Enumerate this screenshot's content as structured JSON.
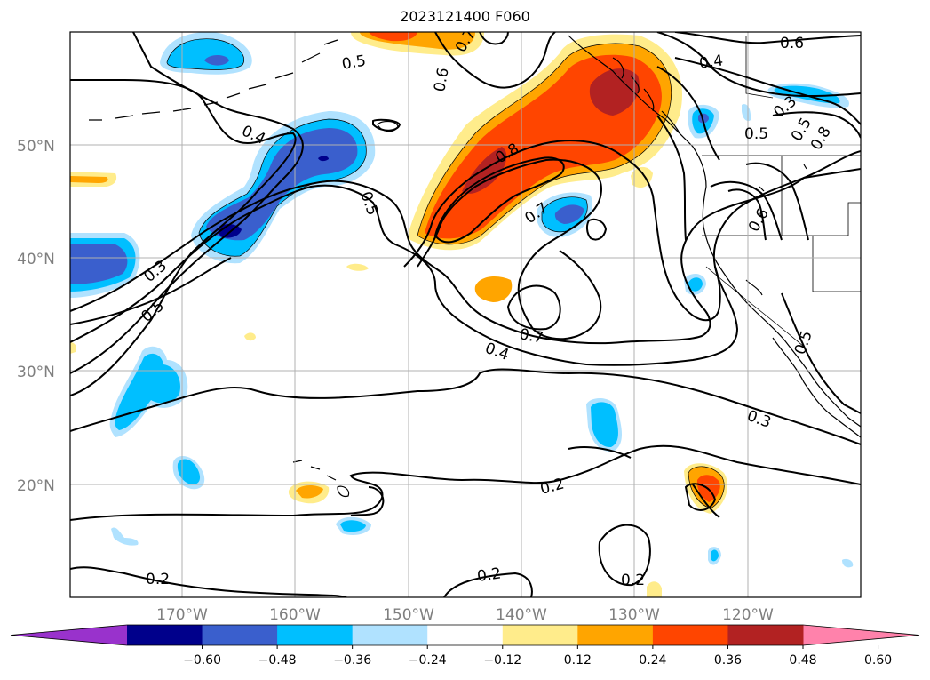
{
  "title": "2023121400 F060",
  "lat_labels": [
    "50°N",
    "40°N",
    "30°N",
    "20°N"
  ],
  "lon_labels": [
    "170°W",
    "160°W",
    "150°W",
    "140°W",
    "130°W",
    "120°W"
  ],
  "colorbar": {
    "colors": [
      "#9932CC",
      "#00008B",
      "#3A5FCD",
      "#00BFFF",
      "#B0E2FF",
      "#FFFFFF",
      "#FFEC8B",
      "#FFA500",
      "#FF4500",
      "#B22222",
      "#FF82AB"
    ],
    "ticks": [
      "−0.60",
      "−0.48",
      "−0.36",
      "−0.24",
      "−0.12",
      "0.12",
      "0.24",
      "0.36",
      "0.48",
      "0.60"
    ]
  },
  "contour_labels": [
    "0.6",
    "0.5",
    "0.6",
    "0.7",
    "0.4",
    "0.3",
    "0.5",
    "0.4",
    "0.8",
    "0.7",
    "0.5",
    "0.3",
    "0.5",
    "0.7",
    "0.4",
    "0.3",
    "0.2",
    "0.2",
    "0.2",
    "0.2",
    "0.6",
    "0.5",
    "0.8",
    "0.5"
  ]
}
